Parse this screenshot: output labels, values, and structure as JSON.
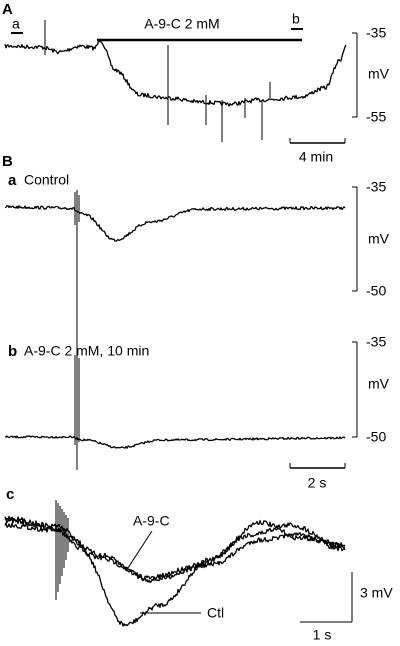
{
  "panel_A": {
    "label": "A",
    "marker_a": "a",
    "marker_b": "b",
    "drug_bar": "A-9-C 2 mM",
    "scale_top": "-35",
    "scale_bottom": "-55",
    "scale_unit": "mV",
    "time_scale": "4 min"
  },
  "panel_B": {
    "label": "B",
    "a": {
      "label": "a",
      "title": "Control",
      "scale_top": "-35",
      "scale_bottom": "-50",
      "scale_unit": "mV"
    },
    "b": {
      "label": "b",
      "title": "A-9-C 2 mM, 10 min",
      "scale_top": "-35",
      "scale_bottom": "-50",
      "scale_unit": "mV"
    },
    "time_scale": "2 s"
  },
  "panel_C": {
    "label": "c",
    "trace_drug": "A-9-C",
    "trace_control": "Ctl",
    "voltage_scale": "3 mV",
    "time_scale": "1 s"
  }
}
